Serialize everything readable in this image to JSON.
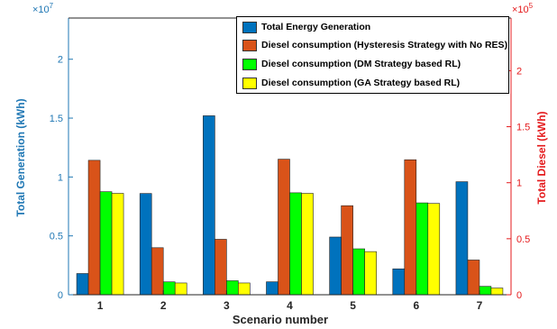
{
  "chart_data": {
    "type": "bar",
    "categories": [
      "1",
      "2",
      "3",
      "4",
      "5",
      "6",
      "7"
    ],
    "xlabel": "Scenario number",
    "left_axis": {
      "label": "Total Generation (kWh)",
      "exponent_label": "×10",
      "exponent_power": "7",
      "ylim": [
        0,
        23500000
      ],
      "ticks": [
        0,
        5000000,
        10000000,
        15000000,
        20000000
      ],
      "tick_labels": [
        "0",
        "0.5",
        "1",
        "1.5",
        "2"
      ],
      "color": "#1f77b4"
    },
    "right_axis": {
      "label": "Total Diesel (kWh)",
      "exponent_label": "×10",
      "exponent_power": "5",
      "ylim": [
        0,
        247000
      ],
      "ticks": [
        0,
        50000,
        100000,
        150000,
        200000
      ],
      "tick_labels": [
        "0",
        "0.5",
        "1",
        "1.5",
        "2"
      ],
      "color": "#e41a1c"
    },
    "legend_position": "top-right",
    "grid": false,
    "series": [
      {
        "name": "Total Energy Generation",
        "axis": "left",
        "color": "#0072BD",
        "values": [
          1800000,
          8600000,
          15200000,
          1100000,
          4900000,
          2200000,
          9600000
        ]
      },
      {
        "name": "Diesel consumption (Hysteresis Strategy with No RES)",
        "axis": "right",
        "color": "#D95319",
        "values": [
          120000,
          42000,
          49500,
          121000,
          79500,
          120500,
          31000
        ]
      },
      {
        "name": "Diesel consumption (DM Strategy based RL)",
        "axis": "right",
        "color": "#00FF00",
        "values": [
          92000,
          11500,
          12500,
          91000,
          41000,
          82000,
          7500
        ]
      },
      {
        "name": "Diesel consumption (GA Strategy based RL)",
        "axis": "right",
        "color": "#FFFF00",
        "values": [
          90500,
          10500,
          10500,
          90500,
          38500,
          81500,
          6000
        ]
      }
    ]
  }
}
